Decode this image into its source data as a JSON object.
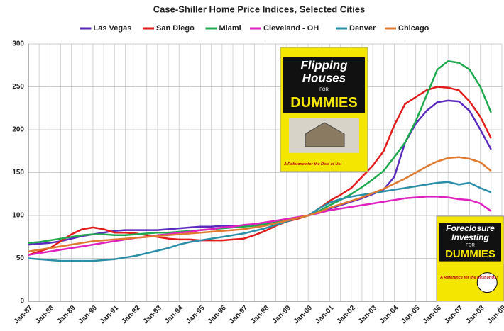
{
  "chart_data": {
    "type": "line",
    "title": "Case-Shiller Home Price Indices, Selected Cities",
    "categories": [
      "Jan-87",
      null,
      "Jan-88",
      null,
      "Jan-89",
      null,
      "Jan-90",
      null,
      "Jan-91",
      null,
      "Jan-92",
      null,
      "Jan-93",
      null,
      "Jan-94",
      null,
      "Jan-95",
      null,
      "Jan-96",
      null,
      "Jan-97",
      null,
      "Jan-98",
      null,
      "Jan-99",
      null,
      "Jan-00",
      null,
      "Jan-01",
      null,
      "Jan-02",
      null,
      "Jan-03",
      null,
      "Jan-04",
      null,
      "Jan-05",
      null,
      "Jan-06",
      null,
      "Jan-07",
      null,
      "Jan-08",
      null,
      "Jan-09"
    ],
    "series": [
      {
        "name": "Las Vegas",
        "color": "#5b2bbf",
        "values": [
          66,
          67,
          68,
          70,
          73,
          76,
          78,
          80,
          82,
          83,
          83,
          83,
          83,
          84,
          85,
          86,
          87,
          87,
          88,
          88,
          88,
          89,
          90,
          92,
          95,
          97,
          100,
          103,
          108,
          112,
          116,
          120,
          125,
          130,
          145,
          185,
          207,
          222,
          232,
          234,
          233,
          222,
          200,
          177,
          null
        ]
      },
      {
        "name": "San Diego",
        "color": "#e31b1b",
        "values": [
          54,
          58,
          62,
          70,
          78,
          84,
          86,
          84,
          80,
          80,
          79,
          77,
          75,
          73,
          72,
          72,
          71,
          71,
          71,
          72,
          73,
          77,
          82,
          88,
          93,
          96,
          100,
          108,
          117,
          124,
          132,
          145,
          158,
          175,
          205,
          230,
          238,
          246,
          250,
          249,
          246,
          233,
          215,
          190,
          null
        ]
      },
      {
        "name": "Miami",
        "color": "#1faa4f",
        "values": [
          68,
          69,
          71,
          73,
          75,
          77,
          78,
          78,
          77,
          77,
          78,
          79,
          80,
          80,
          81,
          82,
          83,
          84,
          85,
          86,
          87,
          88,
          90,
          92,
          95,
          97,
          100,
          105,
          112,
          118,
          125,
          133,
          142,
          152,
          168,
          185,
          210,
          240,
          270,
          280,
          278,
          270,
          250,
          220,
          null
        ]
      },
      {
        "name": "Cleveland - OH",
        "color": "#e020c0",
        "values": [
          54,
          56,
          58,
          60,
          62,
          64,
          66,
          68,
          70,
          72,
          74,
          75,
          77,
          78,
          80,
          81,
          83,
          84,
          86,
          87,
          89,
          90,
          92,
          94,
          96,
          98,
          100,
          103,
          106,
          108,
          110,
          112,
          114,
          116,
          118,
          120,
          121,
          122,
          122,
          121,
          119,
          118,
          114,
          105,
          null
        ]
      },
      {
        "name": "Denver",
        "color": "#2a8ea8",
        "values": [
          50,
          49,
          48,
          47,
          47,
          47,
          47,
          48,
          49,
          51,
          53,
          56,
          59,
          62,
          66,
          69,
          71,
          73,
          75,
          77,
          79,
          82,
          85,
          89,
          93,
          97,
          100,
          108,
          115,
          119,
          122,
          124,
          126,
          128,
          130,
          132,
          134,
          136,
          138,
          139,
          136,
          138,
          132,
          127,
          null
        ]
      },
      {
        "name": "Chicago",
        "color": "#e07a30",
        "values": [
          58,
          60,
          62,
          64,
          66,
          68,
          70,
          71,
          72,
          73,
          74,
          75,
          76,
          77,
          78,
          79,
          80,
          81,
          82,
          83,
          84,
          86,
          88,
          91,
          94,
          97,
          100,
          104,
          109,
          113,
          117,
          121,
          126,
          131,
          137,
          143,
          150,
          157,
          163,
          167,
          168,
          166,
          162,
          152,
          null
        ]
      }
    ],
    "ylim": [
      0,
      300
    ],
    "yticks": [
      0,
      50,
      100,
      150,
      200,
      250,
      300
    ],
    "grid": true,
    "legend": "top",
    "book_covers": [
      {
        "title_lines": [
          "Flipping",
          "Houses"
        ],
        "for": "FOR",
        "brand": "DUMMIES",
        "tagline": "A Reference for the Rest of Us!"
      },
      {
        "title_lines": [
          "Foreclosure",
          "Investing"
        ],
        "for": "FOR",
        "brand": "DUMMIES",
        "tagline": "A Reference for the Rest of Us!"
      }
    ]
  }
}
